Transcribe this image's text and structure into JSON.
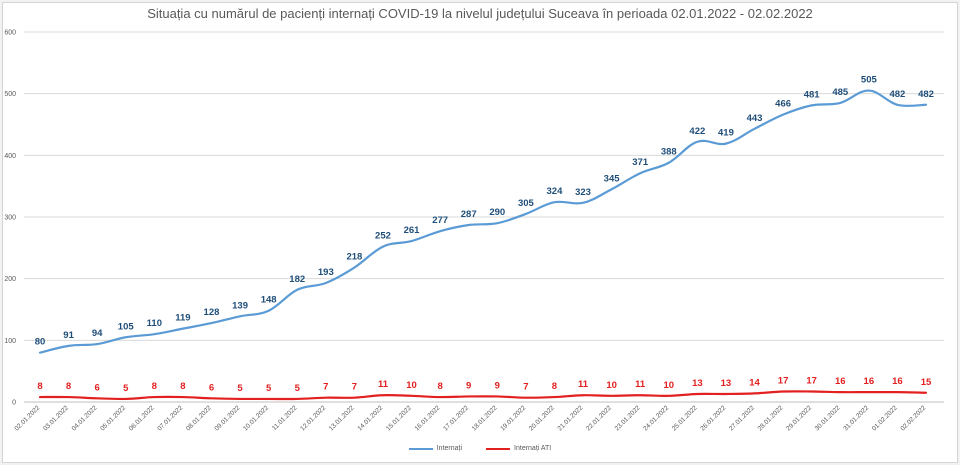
{
  "chart_data": {
    "type": "line",
    "title": "Situația cu numărul de pacienți internați COVID-19 la nivelul județului Suceava în perioada 02.01.2022 - 02.02.2022",
    "xlabel": "",
    "ylabel": "",
    "ylim": [
      0,
      600
    ],
    "yticks": [
      0,
      100,
      200,
      300,
      400,
      500,
      600
    ],
    "grid": true,
    "legend_position": "bottom",
    "categories": [
      "02.01.2022",
      "03.01.2022",
      "04.01.2022",
      "05.01.2022",
      "06.01.2022",
      "07.01.2022",
      "08.01.2022",
      "09.01.2022",
      "10.01.2022",
      "11.01.2022",
      "12.01.2022",
      "13.01.2022",
      "14.01.2022",
      "15.01.2022",
      "16.01.2022",
      "17.01.2022",
      "18.01.2022",
      "19.01.2022",
      "20.01.2022",
      "21.01.2022",
      "22.01.2022",
      "23.01.2022",
      "24.01.2022",
      "25.01.2022",
      "26.01.2022",
      "27.01.2022",
      "28.01.2022",
      "29.01.2022",
      "30.01.2022",
      "31.01.2022",
      "01.02.2022",
      "02.02.2022"
    ],
    "series": [
      {
        "name": "Internați",
        "color": "#5b9bd5",
        "label_color": "#1f4e79",
        "values": [
          80,
          91,
          94,
          105,
          110,
          119,
          128,
          139,
          148,
          182,
          193,
          218,
          252,
          261,
          277,
          287,
          290,
          305,
          324,
          323,
          345,
          371,
          388,
          422,
          419,
          443,
          466,
          481,
          485,
          505,
          482,
          482
        ]
      },
      {
        "name": "Internați ATI",
        "color": "#e32020",
        "label_color": "#e32020",
        "values": [
          8,
          8,
          6,
          5,
          8,
          8,
          6,
          5,
          5,
          5,
          7,
          7,
          11,
          10,
          8,
          9,
          9,
          7,
          8,
          11,
          10,
          11,
          10,
          13,
          13,
          14,
          17,
          17,
          16,
          16,
          16,
          15
        ]
      }
    ]
  }
}
